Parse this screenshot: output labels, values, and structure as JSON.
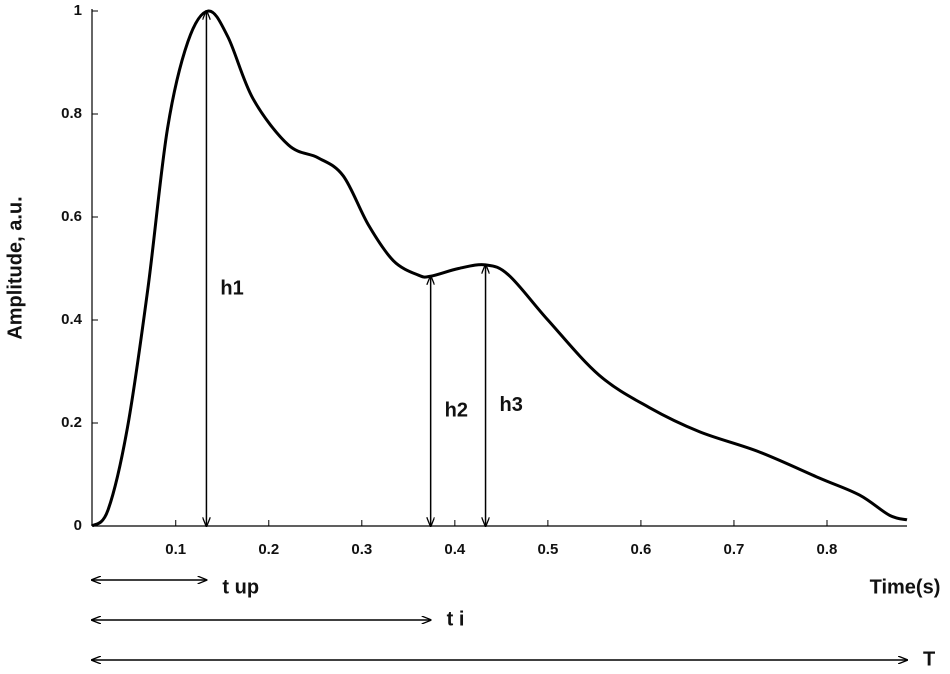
{
  "chart_data": {
    "type": "line",
    "y_label": "Amplitude, a.u.",
    "x_label": "Time(s)",
    "xlim": [
      0.01,
      0.886
    ],
    "ylim": [
      0,
      1
    ],
    "xticks": [
      0.1,
      0.2,
      0.3,
      0.4,
      0.5,
      0.6,
      0.7,
      0.8
    ],
    "yticks": [
      0,
      0.2,
      0.4,
      0.6,
      0.8,
      1
    ],
    "color": "#000000",
    "x": [
      0.01,
      0.027,
      0.048,
      0.07,
      0.091,
      0.113,
      0.135,
      0.156,
      0.183,
      0.221,
      0.253,
      0.28,
      0.307,
      0.334,
      0.361,
      0.374,
      0.404,
      0.433,
      0.458,
      0.5,
      0.555,
      0.609,
      0.663,
      0.727,
      0.792,
      0.835,
      0.867,
      0.886
    ],
    "values": [
      0,
      0.03,
      0.19,
      0.46,
      0.77,
      0.94,
      1.0,
      0.95,
      0.83,
      0.74,
      0.715,
      0.68,
      0.585,
      0.515,
      0.487,
      0.485,
      0.5,
      0.507,
      0.487,
      0.4,
      0.293,
      0.23,
      0.183,
      0.144,
      0.093,
      0.06,
      0.021,
      0.012
    ],
    "annotations": [
      {
        "label": "h1",
        "x": 0.133,
        "y": 1.0
      },
      {
        "label": "h2",
        "x": 0.374,
        "y": 0.485
      },
      {
        "label": "h3",
        "x": 0.433,
        "y": 0.507
      }
    ],
    "intervals": [
      {
        "label": "t up",
        "start": 0.01,
        "end": 0.133
      },
      {
        "label": "t i",
        "start": 0.01,
        "end": 0.374
      },
      {
        "label": "T",
        "start": 0.01,
        "end": 0.886
      }
    ]
  }
}
